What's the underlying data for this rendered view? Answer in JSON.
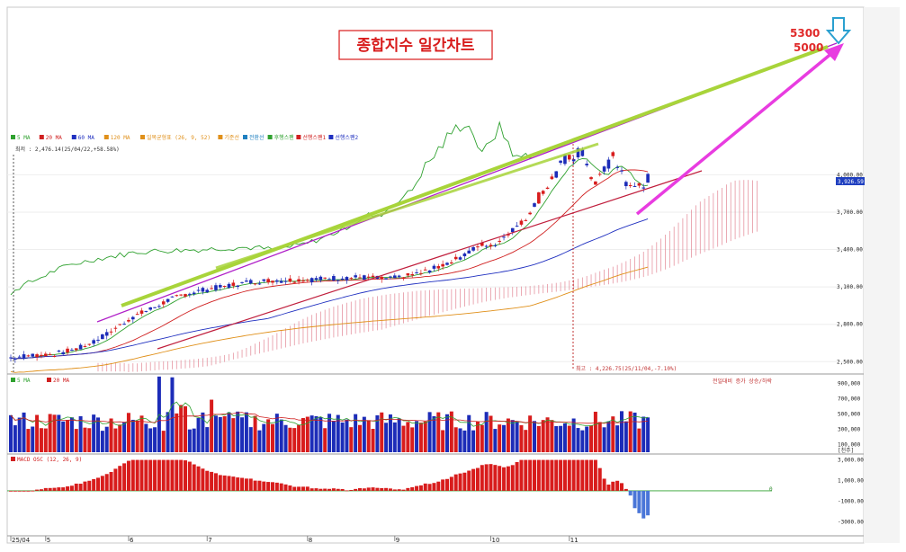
{
  "title": "종합지수 일간차트",
  "annotations": {
    "target_high": "5300",
    "target_low": "5000",
    "low_label": "최저 : 2,476.14(25/04/22,+58.58%)",
    "high_label": "최고 : 4,226.75(25/11/04,-7.10%)",
    "current_price": "3,926.59",
    "volume_right": "전일대비 증가 상승/하락"
  },
  "legend": {
    "items": [
      {
        "label": "5 MA",
        "color": "#2fa12f"
      },
      {
        "label": "20 MA",
        "color": "#d02020"
      },
      {
        "label": "60 MA",
        "color": "#2030c0"
      },
      {
        "label": "120 MA",
        "color": "#e0901a"
      },
      {
        "label": "일목균형표 (26, 9, 52)",
        "color": "#e0901a"
      },
      {
        "label": "기준선",
        "color": "#e0901a"
      },
      {
        "label": "전환선",
        "color": "#2080c0"
      },
      {
        "label": "후행스팬",
        "color": "#2fa12f"
      },
      {
        "label": "선행스팬1",
        "color": "#d02020"
      },
      {
        "label": "선행스팬2",
        "color": "#2030c0"
      }
    ],
    "volume_items": [
      {
        "label": "5 MA",
        "color": "#2fa12f"
      },
      {
        "label": "20 MA",
        "color": "#d02020"
      }
    ],
    "macd_label": "MACD OSC (12, 26, 9)"
  },
  "colors": {
    "up": "#d81c1c",
    "down": "#1c2cb8",
    "osc_neg": "#4a76d8",
    "cloud": "#e07a8a",
    "trend_green": "#a8d43a",
    "trend_purple": "#b020c8",
    "arrow_magenta": "#e83ce0",
    "arrow_blue": "#2aa0d0",
    "target_text": "#e02a2a"
  },
  "chart_data": [
    {
      "type": "candlestick",
      "y_ticks": [
        "4,000.00",
        "3,700.00",
        "3,400.00",
        "3,100.00",
        "2,800.00",
        "2,500.00"
      ],
      "y_tick_values": [
        4000,
        3700,
        3400,
        3100,
        2800,
        2500
      ],
      "ylim": [
        2430,
        4320
      ],
      "x_labels": [
        "25/04",
        "5",
        "6",
        "7",
        "8",
        "9",
        "10",
        "11"
      ],
      "close_path": [
        [
          0,
          2530
        ],
        [
          5,
          2550
        ],
        [
          10,
          2560
        ],
        [
          15,
          2600
        ],
        [
          18,
          2640
        ],
        [
          22,
          2720
        ],
        [
          25,
          2790
        ],
        [
          28,
          2860
        ],
        [
          32,
          2920
        ],
        [
          36,
          2990
        ],
        [
          40,
          3040
        ],
        [
          45,
          3080
        ],
        [
          50,
          3110
        ],
        [
          55,
          3140
        ],
        [
          60,
          3150
        ],
        [
          65,
          3155
        ],
        [
          70,
          3160
        ],
        [
          74,
          3170
        ],
        [
          78,
          3175
        ],
        [
          82,
          3175
        ],
        [
          86,
          3160
        ],
        [
          90,
          3180
        ],
        [
          94,
          3210
        ],
        [
          98,
          3260
        ],
        [
          102,
          3320
        ],
        [
          106,
          3400
        ],
        [
          108,
          3440
        ],
        [
          110,
          3420
        ],
        [
          112,
          3470
        ],
        [
          115,
          3560
        ],
        [
          118,
          3640
        ],
        [
          121,
          3820
        ],
        [
          124,
          3960
        ],
        [
          127,
          4100
        ],
        [
          130,
          4180
        ],
        [
          132,
          4100
        ],
        [
          134,
          3900
        ],
        [
          136,
          4050
        ],
        [
          138,
          4130
        ],
        [
          140,
          4020
        ],
        [
          142,
          3880
        ],
        [
          144,
          3920
        ],
        [
          146,
          3950
        ]
      ],
      "candle_count": 147,
      "index_high": 4226.75,
      "index_low": 2476.14,
      "index_current": 3926.59
    },
    {
      "type": "bar",
      "name": "volume",
      "y_ticks": [
        "900,000",
        "700,000",
        "500,000",
        "300,000",
        "100,000"
      ],
      "y_tick_values": [
        900000,
        700000,
        500000,
        300000,
        100000
      ],
      "unit_label": "[천주]",
      "ylim": [
        0,
        1000000
      ]
    },
    {
      "type": "bar",
      "name": "MACD OSC (12, 26, 9)",
      "y_ticks": [
        "3,000.00",
        "1,000.00",
        "-1000.00",
        "-3000.00"
      ],
      "y_tick_values": [
        3000,
        1000,
        -1000,
        -3000
      ],
      "zero_label": "0",
      "ylim": [
        -4200,
        3400
      ]
    }
  ]
}
